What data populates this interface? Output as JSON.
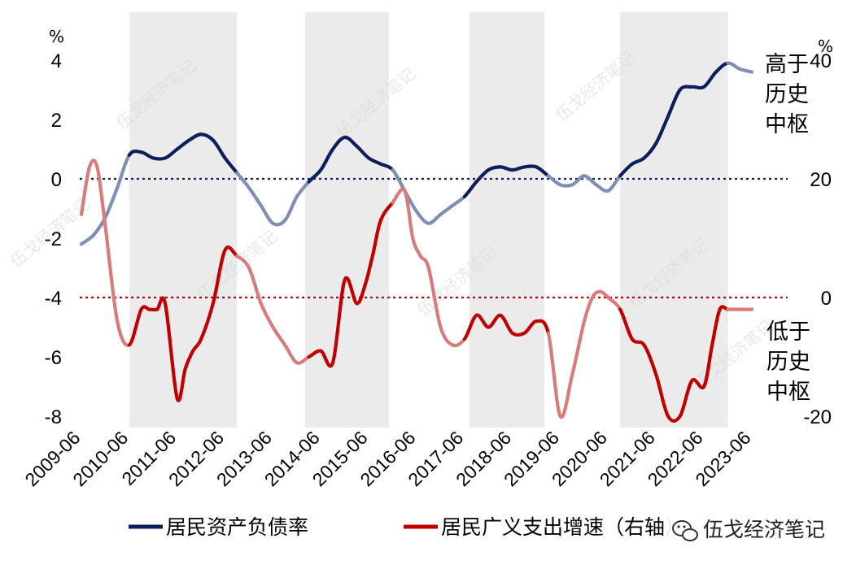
{
  "chart_data": {
    "type": "line",
    "left_axis_unit": "%",
    "right_axis_unit": "%",
    "left_axis": {
      "ylim": [
        -8,
        4
      ],
      "ticks": [
        "4",
        "2",
        "0",
        "-2",
        "-4",
        "-6",
        "-8"
      ]
    },
    "right_axis": {
      "ylim": [
        -20,
        40
      ],
      "ticks": [
        "40",
        "20",
        "0",
        "-20"
      ]
    },
    "x_ticks": [
      "2009-06",
      "2010-06",
      "2011-06",
      "2012-06",
      "2013-06",
      "2014-06",
      "2015-06",
      "2016-06",
      "2017-06",
      "2018-06",
      "2019-06",
      "2020-06",
      "2021-06",
      "2022-06",
      "2023-06"
    ],
    "shaded_periods": [
      [
        2010.5,
        2012.75
      ],
      [
        2014.17,
        2015.92
      ],
      [
        2017.6,
        2019.17
      ],
      [
        2020.75,
        2023.0
      ]
    ],
    "reference_lines": [
      {
        "axis": "left",
        "value": 0,
        "color": "#0b1f5c"
      },
      {
        "axis": "right",
        "value": 0,
        "color": "#c00000"
      }
    ],
    "series": [
      {
        "name": "居民资产负债率",
        "axis": "left",
        "color": "#0b1f5c",
        "light_color": "#7f8fb4",
        "x": [
          2009.5,
          2009.75,
          2010.0,
          2010.25,
          2010.5,
          2010.75,
          2011.0,
          2011.25,
          2011.5,
          2011.75,
          2012.0,
          2012.25,
          2012.5,
          2012.75,
          2013.0,
          2013.25,
          2013.5,
          2013.75,
          2014.0,
          2014.25,
          2014.5,
          2014.75,
          2015.0,
          2015.25,
          2015.5,
          2015.75,
          2016.0,
          2016.25,
          2016.5,
          2016.75,
          2017.0,
          2017.25,
          2017.5,
          2017.75,
          2018.0,
          2018.25,
          2018.5,
          2018.75,
          2019.0,
          2019.25,
          2019.5,
          2019.75,
          2020.0,
          2020.25,
          2020.5,
          2020.75,
          2021.0,
          2021.25,
          2021.5,
          2021.75,
          2022.0,
          2022.25,
          2022.5,
          2022.75,
          2023.0,
          2023.25,
          2023.5
        ],
        "y": [
          -2.2,
          -1.9,
          -1.3,
          -0.3,
          0.8,
          0.9,
          0.7,
          0.7,
          1.0,
          1.3,
          1.5,
          1.3,
          0.7,
          0.2,
          -0.3,
          -0.9,
          -1.5,
          -1.4,
          -0.6,
          -0.1,
          0.3,
          1.0,
          1.4,
          1.1,
          0.7,
          0.5,
          0.3,
          -0.4,
          -1.1,
          -1.5,
          -1.2,
          -0.9,
          -0.6,
          -0.1,
          0.3,
          0.4,
          0.3,
          0.4,
          0.4,
          0.1,
          -0.2,
          -0.2,
          0.1,
          -0.2,
          -0.4,
          0.1,
          0.5,
          0.7,
          1.2,
          2.1,
          3.0,
          3.1,
          3.1,
          3.6,
          3.9,
          3.7,
          3.6
        ]
      },
      {
        "name": "居民广义支出增速（右轴）",
        "axis": "right",
        "color": "#c00000",
        "light_color": "#d97b7b",
        "x": [
          2009.5,
          2009.67,
          2009.83,
          2010.0,
          2010.25,
          2010.5,
          2010.75,
          2010.92,
          2011.08,
          2011.25,
          2011.5,
          2011.67,
          2011.83,
          2012.0,
          2012.25,
          2012.5,
          2012.75,
          2013.0,
          2013.25,
          2013.5,
          2013.75,
          2014.0,
          2014.25,
          2014.5,
          2014.75,
          2015.0,
          2015.25,
          2015.42,
          2015.58,
          2015.75,
          2016.0,
          2016.25,
          2016.42,
          2016.58,
          2016.75,
          2017.0,
          2017.25,
          2017.5,
          2017.75,
          2018.0,
          2018.25,
          2018.5,
          2018.75,
          2019.0,
          2019.25,
          2019.5,
          2019.75,
          2020.0,
          2020.17,
          2020.33,
          2020.5,
          2020.75,
          2021.0,
          2021.25,
          2021.5,
          2021.75,
          2022.0,
          2022.25,
          2022.5,
          2022.67,
          2022.83,
          2023.0,
          2023.17,
          2023.33,
          2023.5
        ],
        "y": [
          14,
          22,
          22,
          12,
          -4,
          -8,
          -2,
          -2,
          -2,
          -1,
          -17,
          -12,
          -9,
          -7,
          -1,
          8,
          7,
          5,
          -1,
          -5,
          -8,
          -11,
          -10,
          -9,
          -11,
          3,
          -1,
          2,
          7,
          13,
          16,
          18,
          10,
          7,
          5,
          -5,
          -8,
          -7,
          -3,
          -5,
          -3,
          -6,
          -6,
          -4,
          -6,
          -20,
          -13,
          -4,
          0,
          1,
          0,
          -2,
          -7,
          -8,
          -13,
          -20,
          -20,
          -14,
          -15,
          -8,
          -2,
          -2,
          -2,
          -2,
          -2
        ]
      }
    ],
    "annotations": [
      {
        "lines": [
          "高于",
          "历史",
          "中枢"
        ],
        "color": "#0b1f5c"
      },
      {
        "lines": [
          "低于",
          "历史",
          "中枢"
        ],
        "color": "#c00000"
      }
    ]
  },
  "legend": {
    "items": [
      {
        "label": "居民资产负债率",
        "color": "#0b1f5c"
      },
      {
        "label": "居民广义支出增速（右轴）",
        "color": "#c00000"
      }
    ]
  },
  "watermark": "伍戈经济笔记",
  "brand": {
    "icon": "wechat-icon",
    "text": "伍戈经济笔记"
  }
}
